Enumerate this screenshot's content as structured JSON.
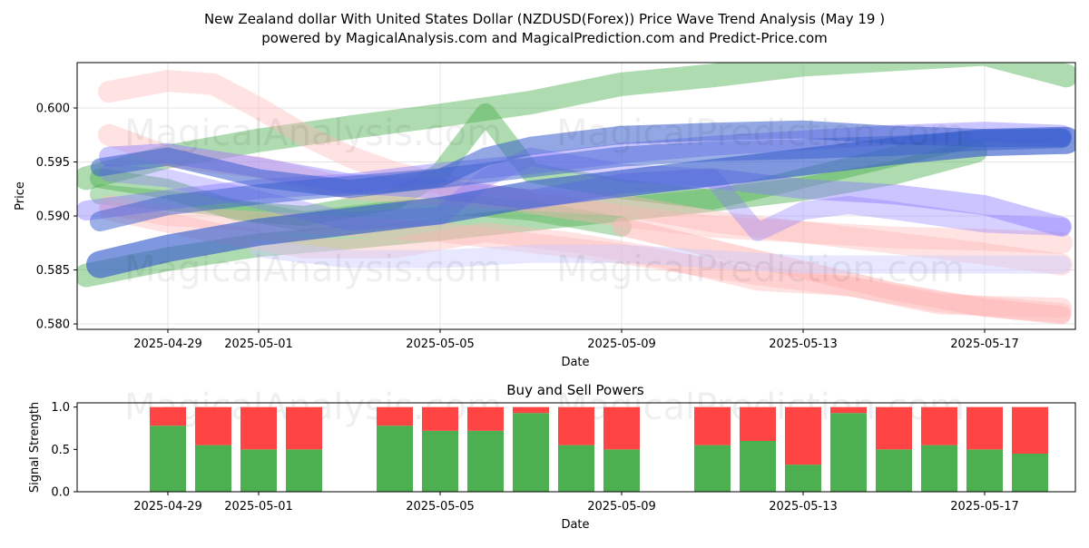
{
  "title_line1": "New Zealand dollar With United States Dollar (NZDUSD(Forex)) Price Wave Trend Analysis (May 19 )",
  "title_line2": "powered by MagicalAnalysis.com and MagicalPrediction.com and Predict-Price.com",
  "watermarks": [
    "MagicalAnalysis.com",
    "MagicalPrediction.com"
  ],
  "colors": {
    "green": "#4caf50",
    "red": "#ff4444",
    "blue": "#3a5fcd",
    "violet": "#8a7cff",
    "pink": "#ffb6b6",
    "lavender": "#c9c9ff"
  },
  "chart_data": [
    {
      "type": "line",
      "title": "",
      "xlabel": "Date",
      "ylabel": "Price",
      "x_tick_labels": [
        "2025-04-29",
        "2025-05-01",
        "2025-05-05",
        "2025-05-09",
        "2025-05-13",
        "2025-05-17"
      ],
      "x_tick_days": [
        1,
        3,
        7,
        11,
        15,
        19
      ],
      "xlim_days": [
        -1,
        21
      ],
      "y_tick_labels": [
        "0.580",
        "0.585",
        "0.590",
        "0.595",
        "0.600"
      ],
      "y_ticks": [
        0.58,
        0.585,
        0.59,
        0.595,
        0.6
      ],
      "ylim": [
        0.5795,
        0.6042
      ],
      "grid": true,
      "series": [
        {
          "name": "green-upper",
          "color": "green",
          "width": 26,
          "opacity": 0.45,
          "x": [
            -0.8,
            1,
            3,
            5,
            7,
            9,
            11,
            13,
            15,
            17,
            19,
            20.8
          ],
          "y": [
            0.5935,
            0.5955,
            0.597,
            0.5982,
            0.5993,
            0.6005,
            0.6022,
            0.603,
            0.604,
            0.6045,
            0.605,
            0.603
          ]
        },
        {
          "name": "green-lower",
          "color": "green",
          "width": 26,
          "opacity": 0.45,
          "x": [
            -0.8,
            1,
            3,
            5,
            7,
            9,
            11,
            13,
            15,
            17,
            18.8
          ],
          "y": [
            0.5845,
            0.586,
            0.5873,
            0.588,
            0.5888,
            0.5897,
            0.5906,
            0.5915,
            0.5925,
            0.594,
            0.596
          ]
        },
        {
          "name": "green-wave",
          "color": "green",
          "width": 22,
          "opacity": 0.45,
          "x": [
            -0.5,
            1,
            2.5,
            4,
            6,
            7,
            8,
            9,
            11,
            13,
            15,
            17,
            18.5
          ],
          "y": [
            0.5935,
            0.5925,
            0.5905,
            0.59,
            0.5915,
            0.594,
            0.5995,
            0.594,
            0.5925,
            0.5915,
            0.5935,
            0.5955,
            0.597
          ]
        },
        {
          "name": "green-band",
          "color": "green",
          "width": 22,
          "opacity": 0.4,
          "x": [
            -0.5,
            2,
            4,
            6,
            7.5,
            9,
            11
          ],
          "y": [
            0.592,
            0.591,
            0.5895,
            0.5905,
            0.591,
            0.5905,
            0.589
          ]
        },
        {
          "name": "red-top",
          "color": "pink",
          "width": 24,
          "opacity": 0.4,
          "x": [
            -0.3,
            1,
            2,
            3,
            4,
            5,
            6,
            7,
            8,
            9,
            11,
            13,
            15,
            17,
            19,
            20.7
          ],
          "y": [
            0.6015,
            0.6025,
            0.6022,
            0.6,
            0.5975,
            0.5955,
            0.594,
            0.593,
            0.592,
            0.5912,
            0.59,
            0.589,
            0.5885,
            0.588,
            0.5878,
            0.5875
          ]
        },
        {
          "name": "red-upper",
          "color": "pink",
          "width": 24,
          "opacity": 0.4,
          "x": [
            -0.3,
            1,
            3,
            5,
            7,
            9,
            11,
            13,
            15,
            17,
            19,
            20.7
          ],
          "y": [
            0.5975,
            0.5955,
            0.5945,
            0.5925,
            0.592,
            0.5915,
            0.591,
            0.5895,
            0.5885,
            0.5875,
            0.5865,
            0.5855
          ]
        },
        {
          "name": "red-mid",
          "color": "pink",
          "width": 22,
          "opacity": 0.4,
          "x": [
            -0.3,
            1,
            3,
            5,
            7,
            9,
            11,
            12.5,
            14,
            16,
            18,
            20.7
          ],
          "y": [
            0.591,
            0.59,
            0.5895,
            0.589,
            0.5885,
            0.5875,
            0.5865,
            0.5855,
            0.5845,
            0.5835,
            0.582,
            0.581
          ]
        },
        {
          "name": "red-low",
          "color": "pink",
          "width": 22,
          "opacity": 0.4,
          "x": [
            -0.3,
            2,
            4,
            6,
            8,
            10,
            12,
            14,
            16,
            18,
            20.7
          ],
          "y": [
            0.5905,
            0.5885,
            0.587,
            0.587,
            0.5885,
            0.5875,
            0.586,
            0.584,
            0.5835,
            0.5818,
            0.5815
          ]
        },
        {
          "name": "red-arrow",
          "color": "pink",
          "width": 20,
          "opacity": 0.55,
          "x": [
            11,
            13,
            15,
            17,
            19,
            20.7
          ],
          "y": [
            0.589,
            0.587,
            0.585,
            0.583,
            0.5815,
            0.5808
          ]
        },
        {
          "name": "violet-upper",
          "color": "violet",
          "width": 22,
          "opacity": 0.45,
          "x": [
            -0.3,
            1,
            3,
            5,
            7,
            9,
            11,
            13,
            15,
            17,
            19,
            20.7
          ],
          "y": [
            0.5955,
            0.5958,
            0.5945,
            0.593,
            0.5925,
            0.5915,
            0.593,
            0.5935,
            0.5925,
            0.592,
            0.591,
            0.589
          ]
        },
        {
          "name": "violet-wave",
          "color": "violet",
          "width": 20,
          "opacity": 0.35,
          "x": [
            -0.3,
            1,
            3,
            5,
            7,
            8,
            9,
            11,
            13,
            14,
            15,
            16,
            17,
            19,
            20.7
          ],
          "y": [
            0.594,
            0.5935,
            0.5915,
            0.5895,
            0.59,
            0.5935,
            0.5955,
            0.594,
            0.5935,
            0.5885,
            0.5905,
            0.591,
            0.5905,
            0.5893,
            0.589
          ]
        },
        {
          "name": "lavender-low",
          "color": "lavender",
          "width": 20,
          "opacity": 0.45,
          "x": [
            3,
            5,
            7,
            9,
            11,
            13,
            15,
            17,
            19,
            20.7
          ],
          "y": [
            0.587,
            0.586,
            0.586,
            0.5865,
            0.5865,
            0.586,
            0.5855,
            0.5855,
            0.5855,
            0.5855
          ]
        },
        {
          "name": "violet-band",
          "color": "violet",
          "width": 22,
          "opacity": 0.45,
          "x": [
            -0.8,
            1,
            3,
            5,
            7,
            9,
            11,
            13,
            15,
            17,
            19,
            20.7
          ],
          "y": [
            0.5905,
            0.5915,
            0.5925,
            0.593,
            0.594,
            0.5948,
            0.5958,
            0.5965,
            0.597,
            0.5975,
            0.5978,
            0.5975
          ]
        },
        {
          "name": "blue-top",
          "color": "blue",
          "width": 20,
          "opacity": 0.55,
          "x": [
            -0.5,
            1,
            3,
            5,
            7,
            8,
            9,
            11,
            13,
            15,
            17,
            19,
            20.7
          ],
          "y": [
            0.5945,
            0.5955,
            0.5935,
            0.5925,
            0.5935,
            0.5955,
            0.5965,
            0.5975,
            0.5978,
            0.598,
            0.5975,
            0.5972,
            0.5972
          ]
        },
        {
          "name": "blue-main",
          "color": "blue",
          "width": 30,
          "opacity": 0.65,
          "x": [
            -0.5,
            1,
            3,
            5,
            7,
            9,
            11,
            13,
            15,
            17,
            19,
            20.8
          ],
          "y": [
            0.5855,
            0.587,
            0.5885,
            0.5895,
            0.5905,
            0.592,
            0.593,
            0.594,
            0.595,
            0.596,
            0.5968,
            0.597
          ]
        },
        {
          "name": "blue-mid",
          "color": "blue",
          "width": 22,
          "opacity": 0.5,
          "x": [
            -0.5,
            1,
            3,
            5,
            7,
            9,
            11,
            13,
            15,
            17,
            19,
            20.7
          ],
          "y": [
            0.5895,
            0.591,
            0.592,
            0.5928,
            0.5935,
            0.5945,
            0.5955,
            0.596,
            0.5962,
            0.5965,
            0.597,
            0.5972
          ]
        }
      ]
    },
    {
      "type": "bar",
      "stacked": true,
      "title": "Buy and Sell Powers",
      "xlabel": "Date",
      "ylabel": "Signal Strength",
      "x_tick_labels": [
        "2025-04-29",
        "2025-05-01",
        "2025-05-05",
        "2025-05-09",
        "2025-05-13",
        "2025-05-17"
      ],
      "x_tick_days": [
        1,
        3,
        7,
        11,
        15,
        19
      ],
      "xlim_days": [
        -1,
        21
      ],
      "y_tick_labels": [
        "0.0",
        "0.5",
        "1.0"
      ],
      "y_ticks": [
        0,
        0.5,
        1
      ],
      "ylim": [
        0,
        1.05
      ],
      "days": [
        1,
        2,
        3,
        4,
        6,
        7,
        8,
        9,
        10,
        11,
        13,
        14,
        15,
        16,
        17,
        18,
        19,
        20
      ],
      "series": [
        {
          "name": "Buy",
          "color": "green",
          "values": [
            0.78,
            0.55,
            0.5,
            0.5,
            0.78,
            0.72,
            0.72,
            0.93,
            0.55,
            0.5,
            0.55,
            0.6,
            0.32,
            0.93,
            0.5,
            0.55,
            0.5,
            0.45
          ]
        },
        {
          "name": "Sell",
          "color": "red",
          "values": [
            0.22,
            0.45,
            0.5,
            0.5,
            0.22,
            0.28,
            0.28,
            0.07,
            0.45,
            0.5,
            0.45,
            0.4,
            0.68,
            0.07,
            0.5,
            0.45,
            0.5,
            0.55
          ]
        }
      ]
    }
  ]
}
